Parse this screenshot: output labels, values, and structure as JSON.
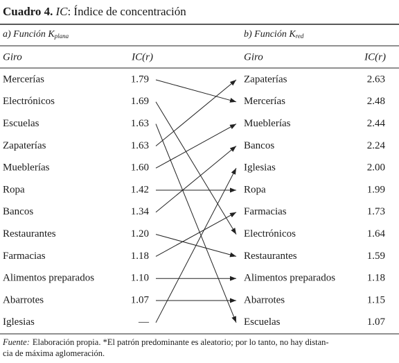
{
  "title": {
    "label": "Cuadro 4.",
    "ic": "IC",
    "text": ": Índice de concentración"
  },
  "left": {
    "heading": "a) Función K",
    "subscript": "plana",
    "columns": [
      "Giro",
      "IC(r)"
    ],
    "rows": [
      [
        "Mercerías",
        "1.79"
      ],
      [
        "Electrónicos",
        "1.69"
      ],
      [
        "Escuelas",
        "1.63"
      ],
      [
        "Zapaterías",
        "1.63"
      ],
      [
        "Mueblerías",
        "1.60"
      ],
      [
        "Ropa",
        "1.42"
      ],
      [
        "Bancos",
        "1.34"
      ],
      [
        "Restaurantes",
        "1.20"
      ],
      [
        "Farmacias",
        "1.18"
      ],
      [
        "Alimentos preparados",
        "1.10"
      ],
      [
        "Abarrotes",
        "1.07"
      ],
      [
        "Iglesias",
        "—"
      ]
    ]
  },
  "right": {
    "heading": "b) Función K",
    "subscript": "red",
    "columns": [
      "Giro",
      "IC(r)"
    ],
    "rows": [
      [
        "Zapaterías",
        "2.63"
      ],
      [
        "Mercerías",
        "2.48"
      ],
      [
        "Mueblerías",
        "2.44"
      ],
      [
        "Bancos",
        "2.24"
      ],
      [
        "Iglesias",
        "2.00"
      ],
      [
        "Ropa",
        "1.99"
      ],
      [
        "Farmacias",
        "1.73"
      ],
      [
        "Electrónicos",
        "1.64"
      ],
      [
        "Restaurantes",
        "1.59"
      ],
      [
        "Alimentos preparados",
        "1.18"
      ],
      [
        "Abarrotes",
        "1.15"
      ],
      [
        "Escuelas",
        "1.07"
      ]
    ]
  },
  "footnote": {
    "source": "Fuente:",
    "lines": [
      "Elaboración propia. *El patrón predominante es aleatorio; por lo tanto, no hay distan-",
      "cia de máxima aglomeración."
    ]
  }
}
